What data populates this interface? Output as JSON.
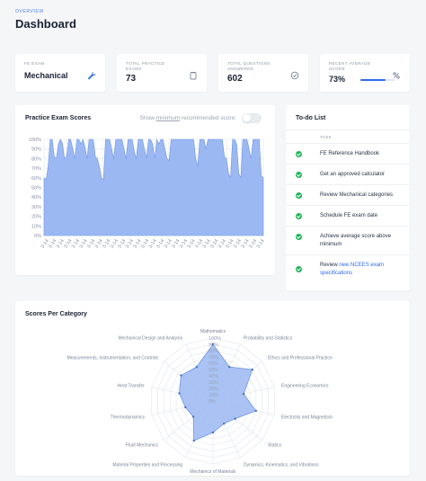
{
  "header": {
    "overview": "OVERVIEW",
    "title": "Dashboard"
  },
  "stats": {
    "exam": {
      "label": "FE EXAM",
      "value": "Mechanical",
      "icon": "wrench-icon"
    },
    "practice": {
      "label": "TOTAL PRACTICE EXAMS",
      "value": "73",
      "icon": "clipboard-icon"
    },
    "questions": {
      "label": "TOTAL QUESTIONS ANSWERED",
      "value": "602",
      "icon": "check-circle-icon"
    },
    "average": {
      "label": "RECENT AVERAGE SCORE",
      "value": "73%",
      "progress": 0.73,
      "icon": "percent-icon"
    }
  },
  "practice_card": {
    "title": "Practice Exam Scores",
    "toggle_prefix": "Show ",
    "toggle_link": "minimum",
    "toggle_suffix": " recommended score:",
    "toggle_on": false
  },
  "todo": {
    "title": "To-do List",
    "column": "TASK",
    "items": [
      {
        "text": "FE Reference Handbook",
        "done": true
      },
      {
        "text": "Get an approved calculator",
        "done": true
      },
      {
        "text": "Review Mechanical categories",
        "done": true
      },
      {
        "text": "Schedule FE exam date",
        "done": true
      },
      {
        "text": "Achieve average score above minimum",
        "done": true
      },
      {
        "text_prefix": "Review ",
        "link": "new NCEES exam specifications",
        "done": true
      }
    ]
  },
  "category_card": {
    "title": "Scores Per Category"
  },
  "colors": {
    "accent": "#2f6bea",
    "fill": "#9bb8f2",
    "stroke": "#6f95e6",
    "success": "#1fb45b"
  },
  "chart_data": [
    {
      "type": "area",
      "y_ticks": [
        "0%",
        "10%",
        "20%",
        "30%",
        "40%",
        "50%",
        "60%",
        "70%",
        "80%",
        "90%",
        "100%"
      ],
      "ylim": [
        0,
        100
      ],
      "x_label_text": "3-14",
      "values": [
        60,
        58,
        72,
        100,
        100,
        82,
        80,
        95,
        100,
        96,
        80,
        82,
        100,
        100,
        90,
        80,
        100,
        100,
        95,
        100,
        92,
        80,
        100,
        100,
        100,
        82,
        80,
        72,
        60,
        58,
        100,
        100,
        100,
        90,
        80,
        100,
        100,
        100,
        100,
        90,
        80,
        100,
        100,
        100,
        88,
        80,
        100,
        100,
        100,
        90,
        80,
        100,
        100,
        95,
        80,
        100,
        95,
        100,
        100,
        90,
        80,
        78,
        100,
        100,
        100,
        100,
        100,
        100,
        100,
        100,
        100,
        100,
        100,
        100,
        80,
        72,
        100,
        100,
        100,
        90,
        100,
        100,
        100,
        100,
        100,
        100,
        100,
        100,
        82,
        80,
        65,
        60,
        100,
        100,
        95,
        65,
        60,
        100,
        100,
        100,
        90,
        80,
        100,
        100,
        100,
        100,
        62,
        60
      ],
      "grid": true
    },
    {
      "type": "radar",
      "categories": [
        "Mathematics",
        "Probability and Statistics",
        "Ethics and Professional Practice",
        "Engineering Economics",
        "Electricity and Magnetism",
        "Statics",
        "Dynamics, Kinematics, and Vibrations",
        "Mechanics of Materials",
        "Material Properties and Processing",
        "Fluid Mechanics",
        "Thermodynamics",
        "Heat Transfer",
        "Measurements, Instrumentation, and Controls",
        "Mechanical Design and Analysis"
      ],
      "values": [
        90,
        60,
        80,
        50,
        70,
        45,
        40,
        50,
        70,
        40,
        45,
        55,
        65,
        60
      ],
      "r_ticks": [
        "0%",
        "10%",
        "20%",
        "30%",
        "40%",
        "50%",
        "60%",
        "70%",
        "80%",
        "90%",
        "100%"
      ],
      "rlim": [
        0,
        100
      ]
    }
  ]
}
